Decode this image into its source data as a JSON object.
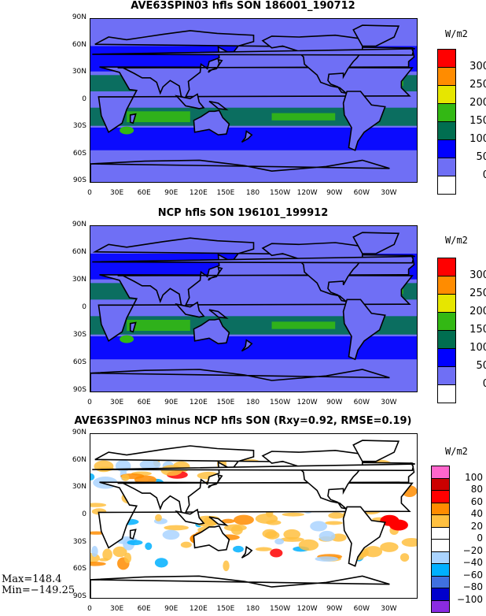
{
  "panels": [
    {
      "title": "AVE63SPIN03 hfls SON 186001_190712",
      "unit": "W/m2",
      "levels": [
        "300",
        "250",
        "200",
        "150",
        "100",
        "50",
        "0"
      ],
      "colors": [
        "#ff0000",
        "#ff8c00",
        "#e6e600",
        "#33b814",
        "#006e50",
        "#0000ff",
        "#6f6ff5",
        "#ffffff"
      ],
      "background": "#6f6ff5"
    },
    {
      "title": "NCP hfls SON 196101_199912",
      "unit": "W/m2",
      "levels": [
        "300",
        "250",
        "200",
        "150",
        "100",
        "50",
        "0"
      ],
      "colors": [
        "#ff0000",
        "#ff8c00",
        "#e6e600",
        "#33b814",
        "#006e50",
        "#0000ff",
        "#6f6ff5",
        "#ffffff"
      ],
      "background": "#6f6ff5"
    },
    {
      "title": "AVE63SPIN03 minus NCP hfls SON (Rxy=0.92, RMSE=0.19)",
      "unit": "W/m2",
      "levels": [
        "100",
        "80",
        "60",
        "40",
        "20",
        "0",
        "−20",
        "−40",
        "−60",
        "−80",
        "−100"
      ],
      "colors": [
        "#ff66cc",
        "#cc0000",
        "#ff0000",
        "#ff8c00",
        "#ffc040",
        "#ffffff",
        "#ffffff",
        "#aad4ff",
        "#00b0ff",
        "#4070e0",
        "#0000cc",
        "#8a2be2"
      ],
      "background": "#ffffff"
    }
  ],
  "lat_labels": [
    "90N",
    "60N",
    "30N",
    "0",
    "30S",
    "60S",
    "90S"
  ],
  "lon_labels": [
    "0",
    "30E",
    "60E",
    "90E",
    "120E",
    "150E",
    "180",
    "150W",
    "120W",
    "90W",
    "60W",
    "30W"
  ],
  "stats": {
    "max": "Max=148.4",
    "min": "Min=−149.25"
  }
}
